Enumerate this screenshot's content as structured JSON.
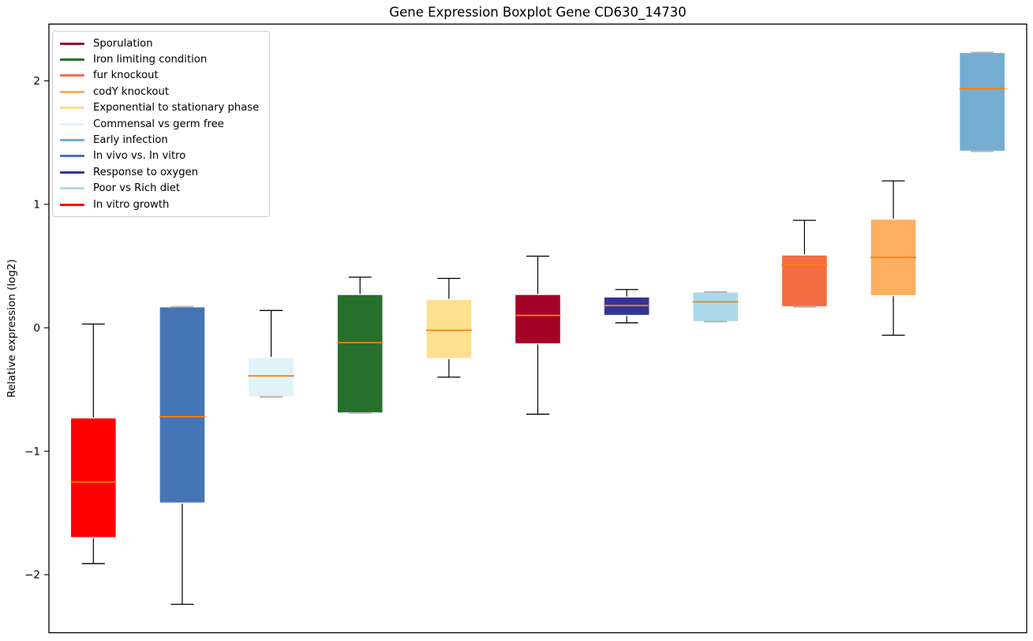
{
  "chart_data": {
    "type": "boxplot",
    "title": "Gene Expression Boxplot Gene CD630_14730",
    "xlabel": "",
    "ylabel": "Relative expression (log2)",
    "ylim": [
      -2.47,
      2.46
    ],
    "grid": false,
    "legend_position": "upper left",
    "median_color": "#FF7F0E",
    "whisker_color": "#000000",
    "flat_cap_color": "#b3b3b3",
    "box_edge_color": "#ffffff",
    "yticks": {
      "values": [
        -2,
        -1,
        0,
        1,
        2
      ],
      "labels": [
        "−2",
        "−1",
        "0",
        "1",
        "2"
      ]
    },
    "boxes": [
      {
        "label": "In vitro growth",
        "color": "#FF0000",
        "whisker_low": -1.91,
        "q1": -1.7,
        "median": -1.25,
        "q3": -0.73,
        "whisker_high": 0.03
      },
      {
        "label": "In vivo vs. In vitro",
        "color": "#4575B4",
        "whisker_low": -2.24,
        "q1": -1.42,
        "median": -0.72,
        "q3": 0.17,
        "whisker_high": 0.17
      },
      {
        "label": "Commensal vs germ free",
        "color": "#E0F3F8",
        "whisker_low": -0.56,
        "q1": -0.56,
        "median": -0.39,
        "q3": -0.24,
        "whisker_high": 0.14
      },
      {
        "label": "Iron limiting condition",
        "color": "#26702D",
        "whisker_low": -0.69,
        "q1": -0.69,
        "median": -0.12,
        "q3": 0.27,
        "whisker_high": 0.41
      },
      {
        "label": "Exponential to stationary phase",
        "color": "#FEE090",
        "whisker_low": -0.4,
        "q1": -0.25,
        "median": -0.02,
        "q3": 0.23,
        "whisker_high": 0.4
      },
      {
        "label": "Sporulation",
        "color": "#A50026",
        "whisker_low": -0.7,
        "q1": -0.13,
        "median": 0.1,
        "q3": 0.27,
        "whisker_high": 0.58
      },
      {
        "label": "Response to oxygen",
        "color": "#313695",
        "whisker_low": 0.04,
        "q1": 0.1,
        "median": 0.18,
        "q3": 0.25,
        "whisker_high": 0.31
      },
      {
        "label": "Poor vs Rich diet",
        "color": "#ABD9E9",
        "whisker_low": 0.05,
        "q1": 0.05,
        "median": 0.21,
        "q3": 0.29,
        "whisker_high": 0.29
      },
      {
        "label": "fur knockout",
        "color": "#F46D43",
        "whisker_low": 0.17,
        "q1": 0.17,
        "median": 0.51,
        "q3": 0.59,
        "whisker_high": 0.87
      },
      {
        "label": "codY knockout",
        "color": "#FDAE61",
        "whisker_low": -0.06,
        "q1": 0.26,
        "median": 0.57,
        "q3": 0.88,
        "whisker_high": 1.19
      },
      {
        "label": "Early infection",
        "color": "#74ADD1",
        "whisker_low": 1.43,
        "q1": 1.43,
        "median": 1.94,
        "q3": 2.23,
        "whisker_high": 2.23
      }
    ],
    "legend": [
      {
        "label": "Sporulation",
        "color": "#A50026"
      },
      {
        "label": "Iron limiting condition",
        "color": "#26702D"
      },
      {
        "label": "fur knockout",
        "color": "#F46D43"
      },
      {
        "label": "codY knockout",
        "color": "#FDAE61"
      },
      {
        "label": "Exponential to stationary phase",
        "color": "#FEE090"
      },
      {
        "label": "Commensal vs germ free",
        "color": "#E0F3F8"
      },
      {
        "label": "Early infection",
        "color": "#74ADD1"
      },
      {
        "label": "In vivo vs. In vitro",
        "color": "#4575B4"
      },
      {
        "label": "Response to oxygen",
        "color": "#313695"
      },
      {
        "label": "Poor vs Rich diet",
        "color": "#ABD9E9"
      },
      {
        "label": "In vitro growth",
        "color": "#FF0000"
      }
    ]
  }
}
